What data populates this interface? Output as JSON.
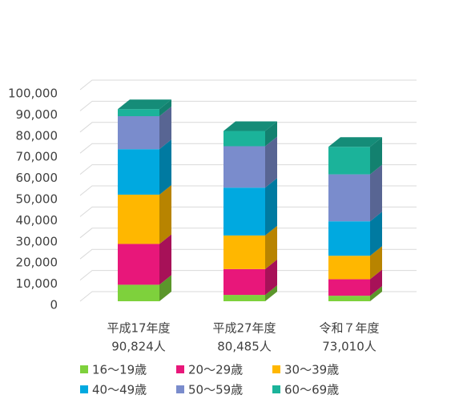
{
  "chart_data": {
    "type": "bar3d_stacked",
    "categories": [
      "平成17年度",
      "平成27年度",
      "令和７年度"
    ],
    "totals": [
      90824,
      80485,
      73010
    ],
    "total_labels": [
      "90,824人",
      "80,485人",
      "73,010人"
    ],
    "series": [
      {
        "name": "16～19歳",
        "color": "#7ed13c",
        "values": [
          7800,
          3000,
          2600
        ]
      },
      {
        "name": "20～29歳",
        "color": "#e8177a",
        "values": [
          19300,
          12200,
          7800
        ]
      },
      {
        "name": "30～39歳",
        "color": "#ffb700",
        "values": [
          23300,
          15900,
          11100
        ]
      },
      {
        "name": "40～49歳",
        "color": "#00a9e0",
        "values": [
          21500,
          22600,
          16300
        ]
      },
      {
        "name": "50～59歳",
        "color": "#7a8ccc",
        "values": [
          15600,
          19600,
          22200
        ]
      },
      {
        "name": "60～69歳",
        "color": "#1bb39a",
        "values": [
          3324,
          7185,
          13010
        ]
      }
    ],
    "ylim": [
      0,
      100000
    ],
    "yticks": [
      {
        "value": 0,
        "label": "0"
      },
      {
        "value": 10000,
        "label": "10,000"
      },
      {
        "value": 20000,
        "label": "20,000"
      },
      {
        "value": 30000,
        "label": "30,000"
      },
      {
        "value": 40000,
        "label": "40,000"
      },
      {
        "value": 50000,
        "label": "50,000"
      },
      {
        "value": 60000,
        "label": "60,000"
      },
      {
        "value": 70000,
        "label": "70,000"
      },
      {
        "value": 80000,
        "label": "80,000"
      },
      {
        "value": 90000,
        "label": "90,000"
      },
      {
        "value": 100000,
        "label": "100,000"
      }
    ],
    "grid": true,
    "legend": "bottom"
  }
}
